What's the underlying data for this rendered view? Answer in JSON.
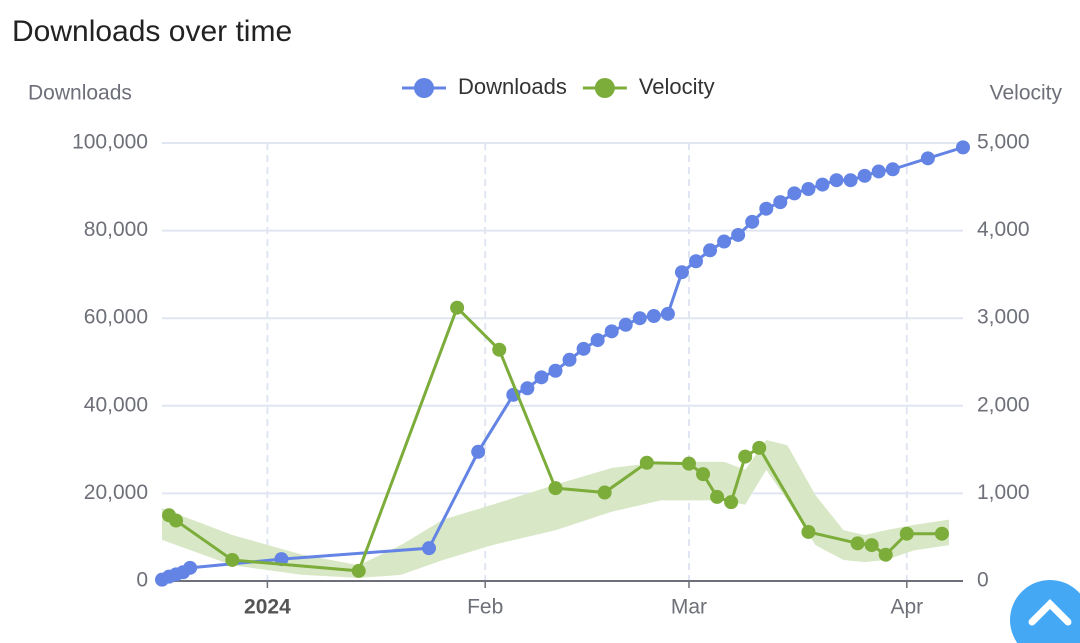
{
  "chart_data": {
    "type": "line",
    "title": "Downloads over time",
    "y_label": "Downloads",
    "y2_label": "Velocity",
    "xlim": [
      -15,
      99
    ],
    "xticks": [
      {
        "value": 0,
        "label": "2024"
      },
      {
        "value": 31,
        "label": "Feb"
      },
      {
        "value": 60,
        "label": "Mar"
      },
      {
        "value": 91,
        "label": "Apr"
      }
    ],
    "ylim": [
      0,
      100000
    ],
    "yticks": [
      0,
      {
        "value": 20000,
        "label": "20,000"
      },
      {
        "value": 40000,
        "label": "40,000"
      },
      {
        "value": 60000,
        "label": "60,000"
      },
      {
        "value": 80000,
        "label": "80,000"
      },
      {
        "value": 100000,
        "label": "100,000"
      }
    ],
    "y2lim": [
      0,
      5000
    ],
    "y2ticks": [
      0,
      {
        "value": 1000,
        "label": "1,000"
      },
      {
        "value": 2000,
        "label": "2,000"
      },
      {
        "value": 3000,
        "label": "3,000"
      },
      {
        "value": 4000,
        "label": "4,000"
      },
      {
        "value": 5000,
        "label": "5,000"
      }
    ],
    "grid": true,
    "legend": "top",
    "series": [
      {
        "name": "Downloads",
        "color": "#6384e4",
        "axis": "y",
        "x": [
          -15,
          -14,
          -13,
          -12,
          -11,
          2,
          23,
          30,
          35,
          37,
          39,
          41,
          43,
          45,
          47,
          49,
          51,
          53,
          55,
          57,
          59,
          61,
          63,
          65,
          67,
          69,
          71,
          73,
          75,
          77,
          79,
          81,
          83,
          85,
          87,
          89,
          94,
          99
        ],
        "values": [
          300,
          1000,
          1500,
          2000,
          3000,
          5000,
          7500,
          29500,
          42500,
          44000,
          46500,
          48000,
          50500,
          53000,
          55000,
          57000,
          58500,
          60000,
          60500,
          61000,
          70500,
          73000,
          75500,
          77500,
          79000,
          82000,
          85000,
          86500,
          88500,
          89500,
          90500,
          91500,
          91500,
          92500,
          93500,
          94000,
          96500,
          99000
        ]
      },
      {
        "name": "Velocity",
        "color": "#7cac3a",
        "axis": "y2",
        "x": [
          -14,
          -13,
          -5,
          13,
          27,
          33,
          41,
          48,
          54,
          60,
          62,
          64,
          66,
          68,
          70,
          77,
          84,
          86,
          88,
          91,
          96
        ],
        "values": [
          750,
          690,
          240,
          115,
          3120,
          2640,
          1060,
          1010,
          1350,
          1340,
          1220,
          960,
          900,
          1420,
          1520,
          560,
          430,
          410,
          300,
          540,
          540
        ]
      }
    ],
    "band": {
      "color": "#d8e7c5",
      "axis": "y2",
      "x": [
        -15,
        -5,
        5,
        13,
        19,
        25,
        32,
        41,
        49,
        56,
        65,
        68,
        71,
        74,
        78,
        82,
        85,
        88,
        92,
        97
      ],
      "upper": [
        830,
        525,
        300,
        180,
        410,
        700,
        870,
        1100,
        1290,
        1360,
        1360,
        1270,
        1610,
        1550,
        980,
        580,
        525,
        580,
        640,
        700
      ],
      "lower": [
        470,
        180,
        70,
        35,
        70,
        240,
        410,
        580,
        790,
        920,
        920,
        870,
        1270,
        920,
        410,
        240,
        215,
        240,
        350,
        410
      ]
    }
  }
}
